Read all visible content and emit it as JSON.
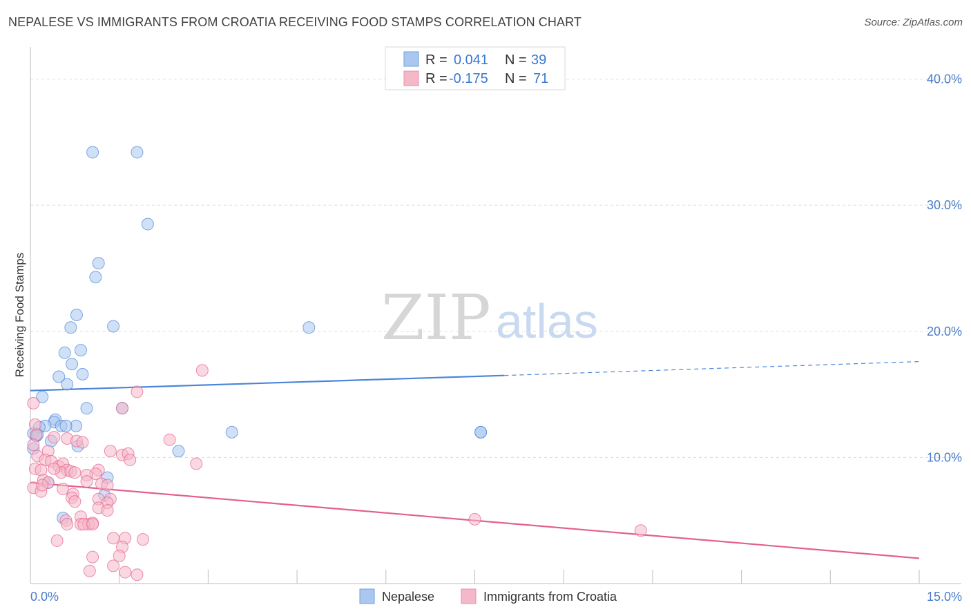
{
  "title": "NEPALESE VS IMMIGRANTS FROM CROATIA RECEIVING FOOD STAMPS CORRELATION CHART",
  "source": "Source: ZipAtlas.com",
  "watermark": {
    "zip": "ZIP",
    "atlas": "atlas"
  },
  "legend_top": {
    "rows": [
      {
        "r_label": "R =",
        "r_value": "0.041",
        "n_label": "N =",
        "n_value": "39",
        "color": "#a9c7ef"
      },
      {
        "r_label": "R =",
        "r_value": "-0.175",
        "n_label": "N =",
        "n_value": "71",
        "color": "#f5b8c9"
      }
    ]
  },
  "legend_bottom": {
    "items": [
      {
        "label": "Nepalese",
        "color": "#a9c7ef"
      },
      {
        "label": "Immigrants from Croatia",
        "color": "#f5b8c9"
      }
    ]
  },
  "chart_data": {
    "type": "scatter",
    "title": "NEPALESE VS IMMIGRANTS FROM CROATIA RECEIVING FOOD STAMPS CORRELATION CHART",
    "xlabel": "",
    "ylabel": "Receiving Food Stamps",
    "xlim": [
      0,
      15
    ],
    "ylim": [
      0,
      42
    ],
    "x_tick_labels": [
      "0.0%",
      "15.0%"
    ],
    "y_ticks": [
      10,
      20,
      30,
      40
    ],
    "y_tick_labels": [
      "10.0%",
      "20.0%",
      "30.0%",
      "40.0%"
    ],
    "grid": true,
    "series": [
      {
        "name": "Nepalese",
        "color": "#4a86d8",
        "fill": "#a9c7ef",
        "trend": {
          "x0": 0,
          "y0": 15.3,
          "x1": 8.0,
          "y1": 16.5,
          "dash_to_x": 15,
          "dash_to_y": 17.6
        },
        "points": [
          [
            1.05,
            34.2
          ],
          [
            1.8,
            34.2
          ],
          [
            1.98,
            28.5
          ],
          [
            1.15,
            25.4
          ],
          [
            1.1,
            24.3
          ],
          [
            0.78,
            21.3
          ],
          [
            0.68,
            20.3
          ],
          [
            1.4,
            20.4
          ],
          [
            4.7,
            20.3
          ],
          [
            0.58,
            18.3
          ],
          [
            0.85,
            18.5
          ],
          [
            0.7,
            17.4
          ],
          [
            0.48,
            16.4
          ],
          [
            0.88,
            16.6
          ],
          [
            0.62,
            15.8
          ],
          [
            0.2,
            14.8
          ],
          [
            0.95,
            13.9
          ],
          [
            1.55,
            13.9
          ],
          [
            0.42,
            13.0
          ],
          [
            0.4,
            12.8
          ],
          [
            0.25,
            12.5
          ],
          [
            0.52,
            12.5
          ],
          [
            0.77,
            12.5
          ],
          [
            0.05,
            11.9
          ],
          [
            0.1,
            11.7
          ],
          [
            0.35,
            11.3
          ],
          [
            0.8,
            10.9
          ],
          [
            2.5,
            10.5
          ],
          [
            3.4,
            12.0
          ],
          [
            7.6,
            12.0
          ],
          [
            7.6,
            12.0
          ],
          [
            0.05,
            10.7
          ],
          [
            1.3,
            8.4
          ],
          [
            0.3,
            8.0
          ],
          [
            1.25,
            7.0
          ],
          [
            0.55,
            5.2
          ],
          [
            0.15,
            12.4
          ],
          [
            0.6,
            12.5
          ],
          [
            0.12,
            11.8
          ]
        ]
      },
      {
        "name": "Immigrants from Croatia",
        "color": "#e3608e",
        "fill": "#f5b8c9",
        "trend": {
          "x0": 0,
          "y0": 8.0,
          "x1": 15,
          "y1": 2.0
        },
        "points": [
          [
            2.9,
            16.9
          ],
          [
            1.8,
            15.2
          ],
          [
            1.55,
            13.9
          ],
          [
            0.05,
            14.3
          ],
          [
            0.08,
            12.6
          ],
          [
            0.1,
            11.8
          ],
          [
            0.4,
            11.6
          ],
          [
            0.62,
            11.5
          ],
          [
            0.78,
            11.3
          ],
          [
            2.35,
            11.4
          ],
          [
            0.05,
            11.0
          ],
          [
            0.3,
            10.5
          ],
          [
            1.35,
            10.5
          ],
          [
            0.12,
            10.1
          ],
          [
            0.25,
            9.8
          ],
          [
            1.55,
            10.2
          ],
          [
            1.65,
            10.3
          ],
          [
            1.68,
            9.8
          ],
          [
            2.8,
            9.5
          ],
          [
            0.35,
            9.7
          ],
          [
            0.48,
            9.3
          ],
          [
            0.55,
            9.5
          ],
          [
            0.08,
            9.1
          ],
          [
            0.18,
            9.0
          ],
          [
            0.62,
            9.0
          ],
          [
            0.52,
            8.8
          ],
          [
            0.68,
            8.9
          ],
          [
            1.15,
            9.0
          ],
          [
            1.1,
            8.7
          ],
          [
            0.95,
            8.6
          ],
          [
            0.75,
            8.8
          ],
          [
            0.22,
            8.2
          ],
          [
            0.3,
            8.0
          ],
          [
            0.95,
            8.1
          ],
          [
            1.2,
            7.9
          ],
          [
            1.3,
            7.8
          ],
          [
            0.05,
            7.6
          ],
          [
            0.18,
            7.3
          ],
          [
            0.55,
            7.5
          ],
          [
            0.72,
            7.1
          ],
          [
            0.7,
            6.8
          ],
          [
            1.15,
            6.7
          ],
          [
            1.35,
            6.7
          ],
          [
            1.3,
            6.4
          ],
          [
            0.75,
            6.5
          ],
          [
            1.15,
            6.0
          ],
          [
            1.3,
            5.8
          ],
          [
            0.85,
            5.3
          ],
          [
            0.6,
            5.0
          ],
          [
            0.62,
            4.7
          ],
          [
            0.85,
            4.7
          ],
          [
            0.98,
            4.7
          ],
          [
            1.05,
            4.8
          ],
          [
            0.9,
            4.7
          ],
          [
            1.05,
            4.7
          ],
          [
            7.5,
            5.1
          ],
          [
            10.3,
            4.2
          ],
          [
            1.4,
            3.6
          ],
          [
            1.6,
            3.6
          ],
          [
            1.9,
            3.5
          ],
          [
            0.45,
            3.4
          ],
          [
            1.55,
            2.9
          ],
          [
            1.5,
            2.2
          ],
          [
            1.05,
            2.1
          ],
          [
            1.4,
            1.4
          ],
          [
            1.6,
            0.9
          ],
          [
            1.8,
            0.7
          ],
          [
            1.0,
            1.0
          ],
          [
            0.2,
            7.8
          ],
          [
            0.4,
            9.1
          ],
          [
            0.88,
            11.2
          ]
        ]
      }
    ]
  }
}
